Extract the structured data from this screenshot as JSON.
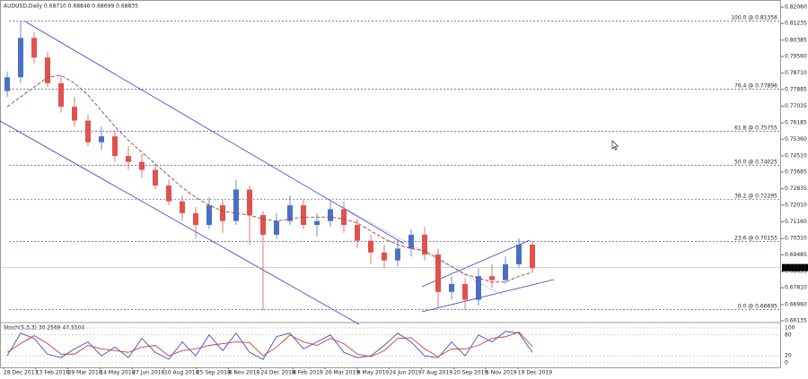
{
  "chart_data": {
    "type": "candlestick",
    "title": "AUDUSD,Daily 0.68710 0.68846 0.68699 0.68835",
    "up_color": "#4a6fc4",
    "down_color": "#e0524d",
    "open": [
      0.778,
      0.785,
      0.805,
      0.795,
      0.782,
      0.77,
      0.763,
      0.752,
      0.755,
      0.745,
      0.742,
      0.738,
      0.73,
      0.722,
      0.716,
      0.71,
      0.72,
      0.712,
      0.728,
      0.715,
      0.705,
      0.712,
      0.72,
      0.71,
      0.712,
      0.718,
      0.71,
      0.702,
      0.696,
      0.692,
      0.698,
      0.705,
      0.695,
      0.676,
      0.68,
      0.672,
      0.684,
      0.682,
      0.69,
      0.7
    ],
    "high": [
      0.788,
      0.8136,
      0.808,
      0.798,
      0.786,
      0.775,
      0.766,
      0.76,
      0.758,
      0.75,
      0.746,
      0.741,
      0.733,
      0.725,
      0.719,
      0.724,
      0.723,
      0.733,
      0.73,
      0.717,
      0.716,
      0.725,
      0.723,
      0.716,
      0.722,
      0.722,
      0.713,
      0.705,
      0.7,
      0.702,
      0.708,
      0.709,
      0.698,
      0.684,
      0.683,
      0.688,
      0.69,
      0.694,
      0.7032,
      0.702
    ],
    "low": [
      0.775,
      0.782,
      0.792,
      0.78,
      0.767,
      0.76,
      0.75,
      0.748,
      0.742,
      0.738,
      0.734,
      0.728,
      0.72,
      0.712,
      0.703,
      0.708,
      0.706,
      0.71,
      0.7,
      0.6665,
      0.703,
      0.71,
      0.708,
      0.704,
      0.709,
      0.706,
      0.698,
      0.69,
      0.688,
      0.689,
      0.694,
      0.692,
      0.668,
      0.672,
      0.667,
      0.669,
      0.678,
      0.68,
      0.688,
      0.686
    ],
    "close": [
      0.785,
      0.805,
      0.795,
      0.782,
      0.77,
      0.763,
      0.752,
      0.755,
      0.745,
      0.742,
      0.738,
      0.73,
      0.722,
      0.716,
      0.71,
      0.72,
      0.712,
      0.728,
      0.715,
      0.705,
      0.712,
      0.72,
      0.71,
      0.712,
      0.718,
      0.71,
      0.702,
      0.696,
      0.692,
      0.698,
      0.705,
      0.695,
      0.676,
      0.68,
      0.672,
      0.684,
      0.682,
      0.69,
      0.7,
      0.688
    ],
    "ma": {
      "color": "#a0403a",
      "values": [
        0.77,
        0.775,
        0.78,
        0.785,
        0.786,
        0.782,
        0.776,
        0.768,
        0.76,
        0.753,
        0.747,
        0.741,
        0.735,
        0.729,
        0.724,
        0.72,
        0.717,
        0.716,
        0.715,
        0.713,
        0.712,
        0.713,
        0.714,
        0.714,
        0.714,
        0.713,
        0.711,
        0.707,
        0.703,
        0.7,
        0.698,
        0.697,
        0.693,
        0.689,
        0.685,
        0.683,
        0.681,
        0.681,
        0.684,
        0.686
      ]
    },
    "ylim": [
      0.66135,
      0.8206
    ],
    "yticks": [
      {
        "value": 0.8206,
        "label": "0.82060"
      },
      {
        "value": 0.81235,
        "label": "0.81235"
      },
      {
        "value": 0.80385,
        "label": "0.80385"
      },
      {
        "value": 0.7956,
        "label": "0.79560"
      },
      {
        "value": 0.7871,
        "label": "0.78710"
      },
      {
        "value": 0.77885,
        "label": "0.77885"
      },
      {
        "value": 0.77035,
        "label": "0.77035"
      },
      {
        "value": 0.76185,
        "label": "0.76185"
      },
      {
        "value": 0.7536,
        "label": "0.75360"
      },
      {
        "value": 0.7451,
        "label": "0.74510"
      },
      {
        "value": 0.73685,
        "label": "0.73685"
      },
      {
        "value": 0.72835,
        "label": "0.72835"
      },
      {
        "value": 0.7201,
        "label": "0.72010"
      },
      {
        "value": 0.7116,
        "label": "0.71160"
      },
      {
        "value": 0.7031,
        "label": "0.70310"
      },
      {
        "value": 0.69485,
        "label": "0.69485"
      },
      {
        "value": 0.68635,
        "label": "0.68635"
      },
      {
        "value": 0.6781,
        "label": "0.67810"
      },
      {
        "value": 0.6696,
        "label": "0.66960"
      },
      {
        "value": 0.66135,
        "label": "0.66135"
      }
    ],
    "fib_levels": [
      {
        "value": 0.81356,
        "label": "100.0 @ 0.81356"
      },
      {
        "value": 0.77896,
        "label": "76.4 @ 0.77896"
      },
      {
        "value": 0.75755,
        "label": "61.8 @ 0.75755"
      },
      {
        "value": 0.74025,
        "label": "50.0 @ 0.74025"
      },
      {
        "value": 0.72295,
        "label": "38.2 @ 0.72295"
      },
      {
        "value": 0.70155,
        "label": "23.6 @ 0.70155"
      },
      {
        "value": 0.66695,
        "label": "0.0 @ 0.66695"
      }
    ],
    "current_price": {
      "value": 0.68835,
      "label": "0.68835"
    },
    "dates": [
      "28 Dec 2017",
      "13 Feb 2018",
      "29 Mar 2018",
      "14 May 2018",
      "27 Jun 2018",
      "10 Aug 2018",
      "25 Sep 2018",
      "8 Nov 2018",
      "24 Dec 2018",
      "8 Feb 2019",
      "26 Mar 2019",
      "9 May 2019",
      "24 Jun 2019",
      "7 Aug 2019",
      "20 Sep 2019",
      "5 Nov 2019",
      "19 Dec 2019"
    ],
    "stochastic": {
      "label": "Stoch(5,3,3) 30.2569 47.5504",
      "ylim": [
        0,
        100
      ],
      "yticks": [
        100,
        80,
        20,
        0
      ],
      "series": [
        {
          "color": "#3550c8",
          "values": [
            20,
            85,
            70,
            25,
            15,
            40,
            60,
            20,
            45,
            15,
            70,
            30,
            10,
            60,
            20,
            80,
            35,
            85,
            30,
            10,
            75,
            85,
            40,
            60,
            80,
            30,
            15,
            20,
            50,
            85,
            60,
            20,
            15,
            60,
            20,
            80,
            60,
            90,
            85,
            30
          ]
        },
        {
          "color": "#d03c3c",
          "values": [
            30,
            55,
            78,
            55,
            25,
            25,
            50,
            40,
            35,
            30,
            45,
            50,
            20,
            35,
            40,
            50,
            55,
            60,
            58,
            20,
            45,
            80,
            60,
            50,
            70,
            55,
            25,
            18,
            35,
            70,
            72,
            40,
            18,
            40,
            40,
            50,
            70,
            75,
            88,
            47
          ]
        }
      ]
    }
  }
}
